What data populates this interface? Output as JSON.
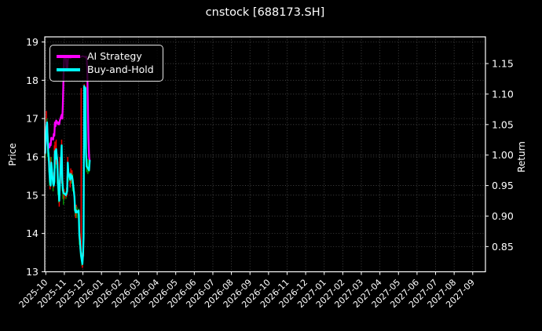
{
  "title": "cnstock [688173.SH]",
  "axes": {
    "left_label": "Price",
    "right_label": "Return"
  },
  "legend": {
    "items": [
      {
        "label": "AI Strategy",
        "color": "#ff00ff"
      },
      {
        "label": "Buy-and-Hold",
        "color": "#00ffff"
      }
    ]
  },
  "colors": {
    "background": "#000000",
    "text": "#ffffff",
    "grid": "#7a7a7a",
    "spine": "#ffffff",
    "candle_up": "#ff0000",
    "candle_down": "#009900",
    "ai_strategy": "#ff00ff",
    "buy_and_hold": "#00ffff"
  },
  "chart_data": {
    "type": "line",
    "title": "cnstock [688173.SH]",
    "xlabel": "",
    "ylabel_left": "Price",
    "ylabel_right": "Return",
    "grid": "dotted, both axes",
    "legend_position": "upper left",
    "x_tick_labels": [
      "2025-10",
      "2025-11",
      "2025-12",
      "2026-01",
      "2026-02",
      "2026-03",
      "2026-04",
      "2026-05",
      "2026-06",
      "2026-07",
      "2026-08",
      "2026-09",
      "2026-10",
      "2026-11",
      "2026-12",
      "2027-01",
      "2027-02",
      "2027-03",
      "2027-04",
      "2027-05",
      "2027-06",
      "2027-07",
      "2027-08",
      "2027-09"
    ],
    "left_axis": {
      "label": "Price",
      "ticks": [
        13,
        14,
        15,
        16,
        17,
        18,
        19
      ],
      "range": [
        12.99,
        19.13
      ]
    },
    "right_axis": {
      "label": "Return",
      "ticks": [
        0.85,
        0.9,
        0.95,
        1.0,
        1.05,
        1.1,
        1.15
      ],
      "range": [
        0.808,
        1.194
      ]
    },
    "series": [
      {
        "name": "AI Strategy",
        "color": "#ff00ff",
        "axis": "price",
        "points": [
          [
            -1,
            16.1
          ],
          [
            0,
            16.45
          ],
          [
            1,
            16.75
          ],
          [
            2,
            16.9
          ],
          [
            3,
            16.55
          ],
          [
            4,
            16.2
          ],
          [
            5,
            16.3
          ],
          [
            6,
            16.25
          ],
          [
            7,
            16.35
          ],
          [
            8,
            16.3
          ],
          [
            9,
            16.5
          ],
          [
            12,
            16.45
          ],
          [
            13,
            16.6
          ],
          [
            14,
            16.55
          ],
          [
            15,
            16.9
          ],
          [
            16,
            16.8
          ],
          [
            17,
            16.95
          ],
          [
            19,
            16.9
          ],
          [
            20,
            16.85
          ],
          [
            21,
            16.9
          ],
          [
            22,
            16.85
          ],
          [
            23,
            16.95
          ],
          [
            26,
            17.1
          ],
          [
            27,
            17.0
          ],
          [
            28,
            17.35
          ],
          [
            29,
            18.05
          ],
          [
            30,
            18.55
          ],
          [
            31,
            18.62
          ],
          [
            33,
            18.6
          ],
          [
            34,
            18.3
          ],
          [
            35,
            18.25
          ],
          [
            36,
            18.5
          ],
          [
            37,
            18.62
          ],
          [
            40,
            18.58
          ],
          [
            44,
            18.62
          ],
          [
            48,
            18.6
          ],
          [
            52,
            18.62
          ],
          [
            56,
            18.6
          ],
          [
            60,
            18.63
          ],
          [
            63,
            18.62
          ],
          [
            65,
            18.6
          ],
          [
            66,
            18.62
          ],
          [
            67,
            18.6
          ],
          [
            68,
            18.3
          ],
          [
            69,
            17.3
          ],
          [
            70,
            16.5
          ],
          [
            71,
            16.0
          ],
          [
            72,
            15.9
          ]
        ]
      },
      {
        "name": "Buy-and-Hold",
        "color": "#00ffff",
        "axis": "price",
        "points": [
          [
            -1,
            16.1
          ],
          [
            0,
            16.45
          ],
          [
            1,
            16.75
          ],
          [
            2,
            16.9
          ],
          [
            3,
            16.5
          ],
          [
            4,
            16.15
          ],
          [
            5,
            15.95
          ],
          [
            6,
            15.55
          ],
          [
            7,
            15.35
          ],
          [
            8,
            15.25
          ],
          [
            9,
            15.85
          ],
          [
            12,
            15.3
          ],
          [
            13,
            15.25
          ],
          [
            14,
            15.35
          ],
          [
            15,
            16.15
          ],
          [
            16,
            15.95
          ],
          [
            17,
            16.2
          ],
          [
            19,
            15.85
          ],
          [
            20,
            15.3
          ],
          [
            21,
            15.1
          ],
          [
            22,
            14.85
          ],
          [
            23,
            15.3
          ],
          [
            26,
            16.3
          ],
          [
            27,
            15.4
          ],
          [
            28,
            15.15
          ],
          [
            29,
            15.05
          ],
          [
            30,
            15.05
          ],
          [
            33,
            15.0
          ],
          [
            34,
            15.05
          ],
          [
            35,
            15.1
          ],
          [
            36,
            15.85
          ],
          [
            37,
            15.6
          ],
          [
            40,
            15.4
          ],
          [
            41,
            15.55
          ],
          [
            42,
            15.45
          ],
          [
            43,
            15.5
          ],
          [
            44,
            15.4
          ],
          [
            47,
            14.95
          ],
          [
            48,
            14.6
          ],
          [
            49,
            14.55
          ],
          [
            50,
            14.6
          ],
          [
            51,
            14.55
          ],
          [
            54,
            14.6
          ],
          [
            55,
            13.95
          ],
          [
            56,
            13.8
          ],
          [
            57,
            13.55
          ],
          [
            58,
            13.4
          ],
          [
            59,
            13.3
          ],
          [
            60,
            13.2
          ],
          [
            61,
            13.45
          ],
          [
            62,
            13.9
          ],
          [
            63,
            17.85
          ],
          [
            64,
            17.3
          ],
          [
            65,
            17.8
          ],
          [
            66,
            16.1
          ],
          [
            67,
            15.75
          ],
          [
            69,
            15.7
          ],
          [
            71,
            15.65
          ],
          [
            72,
            15.9
          ]
        ]
      }
    ],
    "candles": {
      "up_color": "#ff0000",
      "down_color": "#009900",
      "bars": [
        [
          -1,
          15.95,
          16.45,
          "g"
        ],
        [
          0,
          16.2,
          16.8,
          "r"
        ],
        [
          1,
          16.5,
          17.2,
          "r"
        ],
        [
          2,
          16.4,
          17.0,
          "g"
        ],
        [
          3,
          16.0,
          16.6,
          "g"
        ],
        [
          4,
          15.9,
          16.4,
          "g"
        ],
        [
          5,
          15.6,
          16.1,
          "g"
        ],
        [
          6,
          15.25,
          15.7,
          "g"
        ],
        [
          7,
          15.15,
          15.9,
          "r"
        ],
        [
          8,
          15.3,
          16.0,
          "r"
        ],
        [
          9,
          15.5,
          16.0,
          "g"
        ],
        [
          12,
          15.1,
          15.5,
          "g"
        ],
        [
          13,
          15.2,
          15.6,
          "r"
        ],
        [
          14,
          15.3,
          16.3,
          "r"
        ],
        [
          15,
          15.9,
          16.4,
          "r"
        ],
        [
          16,
          15.7,
          16.2,
          "g"
        ],
        [
          17,
          15.8,
          16.45,
          "r"
        ],
        [
          19,
          15.3,
          16.0,
          "g"
        ],
        [
          20,
          15.0,
          15.5,
          "g"
        ],
        [
          21,
          14.8,
          15.3,
          "g"
        ],
        [
          22,
          14.7,
          15.4,
          "r"
        ],
        [
          23,
          15.1,
          16.0,
          "r"
        ],
        [
          26,
          15.3,
          16.45,
          "r"
        ],
        [
          27,
          15.1,
          15.6,
          "g"
        ],
        [
          28,
          14.9,
          15.35,
          "g"
        ],
        [
          29,
          14.75,
          15.2,
          "g"
        ],
        [
          30,
          14.9,
          15.15,
          "r"
        ],
        [
          33,
          14.9,
          15.1,
          "g"
        ],
        [
          34,
          14.95,
          15.2,
          "r"
        ],
        [
          35,
          15.0,
          15.5,
          "r"
        ],
        [
          36,
          15.4,
          16.0,
          "r"
        ],
        [
          37,
          15.35,
          15.8,
          "g"
        ],
        [
          40,
          15.2,
          15.6,
          "r"
        ],
        [
          41,
          15.3,
          15.7,
          "r"
        ],
        [
          42,
          15.3,
          15.6,
          "g"
        ],
        [
          43,
          15.35,
          15.65,
          "r"
        ],
        [
          44,
          15.1,
          15.55,
          "g"
        ],
        [
          47,
          14.6,
          15.1,
          "g"
        ],
        [
          48,
          14.45,
          14.8,
          "g"
        ],
        [
          49,
          14.4,
          14.7,
          "r"
        ],
        [
          50,
          14.45,
          14.75,
          "r"
        ],
        [
          51,
          14.4,
          14.7,
          "g"
        ],
        [
          54,
          14.3,
          14.65,
          "g"
        ],
        [
          55,
          13.7,
          14.5,
          "g"
        ],
        [
          56,
          13.6,
          14.0,
          "g"
        ],
        [
          57,
          13.4,
          13.8,
          "g"
        ],
        [
          58,
          13.35,
          17.8,
          "r"
        ],
        [
          59,
          13.15,
          13.5,
          "g"
        ],
        [
          60,
          13.1,
          13.5,
          "r"
        ],
        [
          62,
          13.4,
          14.2,
          "r"
        ],
        [
          63,
          16.9,
          17.9,
          "r"
        ],
        [
          64,
          16.2,
          17.5,
          "g"
        ],
        [
          65,
          16.8,
          17.85,
          "r"
        ],
        [
          66,
          15.9,
          16.4,
          "g"
        ],
        [
          67,
          15.6,
          16.0,
          "g"
        ],
        [
          69,
          15.55,
          15.95,
          "g"
        ],
        [
          71,
          15.6,
          16.15,
          "g"
        ]
      ]
    }
  }
}
